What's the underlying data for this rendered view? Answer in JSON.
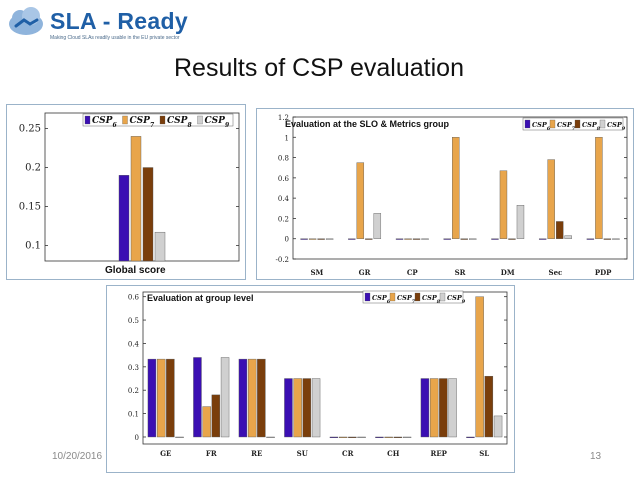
{
  "logo": {
    "brand": "SLA - Ready",
    "tagline": "Making Cloud SLAs readily usable in the EU private sector"
  },
  "slide": {
    "title": "Results of CSP evaluation",
    "date": "10/20/2016",
    "page_number": "13"
  },
  "colors": {
    "CSP6": "#3b0fb3",
    "CSP7": "#e8a54b",
    "CSP8": "#7a3e0b",
    "CSP9": "#d0d0d0"
  },
  "chart_data": [
    {
      "type": "bar",
      "title": "Global score",
      "legend": [
        "CSP6",
        "CSP7",
        "CSP8",
        "CSP9"
      ],
      "legend_position": "top",
      "categories": [
        ""
      ],
      "series": [
        {
          "name": "CSP6",
          "values": [
            0.19
          ]
        },
        {
          "name": "CSP7",
          "values": [
            0.24
          ]
        },
        {
          "name": "CSP8",
          "values": [
            0.2
          ]
        },
        {
          "name": "CSP9",
          "values": [
            0.117
          ]
        }
      ],
      "ylim": [
        0.08,
        0.27
      ],
      "yticks": [
        "0.1",
        "0.15",
        "0.2",
        "0.25"
      ],
      "ytick_values": [
        0.1,
        0.15,
        0.2,
        0.25
      ],
      "grid": false
    },
    {
      "type": "bar",
      "title": "Evaluation at the SLO & Metrics group",
      "legend": [
        "CSP6",
        "CSP7",
        "CSP8",
        "CSP9"
      ],
      "legend_position": "top-right",
      "categories": [
        "SM",
        "GR",
        "CP",
        "SR",
        "DM",
        "Sec",
        "PDP"
      ],
      "series": [
        {
          "name": "CSP6",
          "values": [
            0,
            0,
            0,
            0,
            0,
            0,
            0
          ]
        },
        {
          "name": "CSP7",
          "values": [
            0,
            0.75,
            0,
            1.0,
            0.67,
            0.78,
            1.0
          ]
        },
        {
          "name": "CSP8",
          "values": [
            0,
            0,
            0,
            0,
            0,
            0.17,
            0
          ]
        },
        {
          "name": "CSP9",
          "values": [
            0,
            0.25,
            0,
            0,
            0.33,
            0.03,
            0
          ]
        }
      ],
      "ylim": [
        -0.2,
        1.2
      ],
      "yticks": [
        "-0.2",
        "0",
        "0.2",
        "0.4",
        "0.6",
        "0.8",
        "1",
        "1.2"
      ],
      "ytick_values": [
        -0.2,
        0,
        0.2,
        0.4,
        0.6,
        0.8,
        1.0,
        1.2
      ],
      "grid": false
    },
    {
      "type": "bar",
      "title": "Evaluation at group level",
      "legend": [
        "CSP6",
        "CSP7",
        "CSP8",
        "CSP9"
      ],
      "legend_position": "top-right",
      "categories": [
        "GE",
        "FR",
        "RE",
        "SU",
        "CR",
        "CH",
        "REP",
        "SL"
      ],
      "series": [
        {
          "name": "CSP6",
          "values": [
            0.333,
            0.34,
            0.333,
            0.25,
            0,
            0,
            0.25,
            0
          ]
        },
        {
          "name": "CSP7",
          "values": [
            0.333,
            0.13,
            0.333,
            0.25,
            0,
            0,
            0.25,
            0.6
          ]
        },
        {
          "name": "CSP8",
          "values": [
            0.333,
            0.18,
            0.333,
            0.25,
            0,
            0,
            0.25,
            0.26
          ]
        },
        {
          "name": "CSP9",
          "values": [
            0,
            0.34,
            0,
            0.25,
            0,
            0,
            0.25,
            0.09
          ]
        }
      ],
      "ylim": [
        -0.03,
        0.62
      ],
      "yticks": [
        "0",
        "0.1",
        "0.2",
        "0.3",
        "0.4",
        "0.5",
        "0.6"
      ],
      "ytick_values": [
        0,
        0.1,
        0.2,
        0.3,
        0.4,
        0.5,
        0.6
      ],
      "grid": false
    }
  ]
}
